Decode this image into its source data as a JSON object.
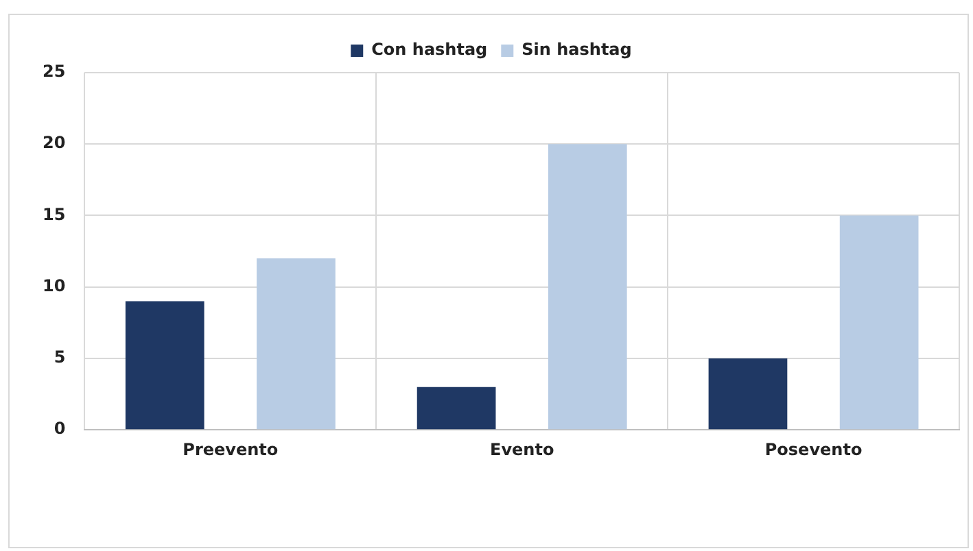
{
  "chart_data": {
    "type": "bar",
    "categories": [
      "Preevento",
      "Evento",
      "Posevento"
    ],
    "series": [
      {
        "name": "Con hashtag",
        "color": "#1f3864",
        "values": [
          9,
          3,
          5
        ]
      },
      {
        "name": "Sin hashtag",
        "color": "#b8cce4",
        "values": [
          12,
          20,
          15
        ]
      }
    ],
    "ylim": [
      0,
      25
    ],
    "yticks": [
      0,
      5,
      10,
      15,
      20,
      25
    ],
    "grid": true,
    "legend": "top"
  }
}
